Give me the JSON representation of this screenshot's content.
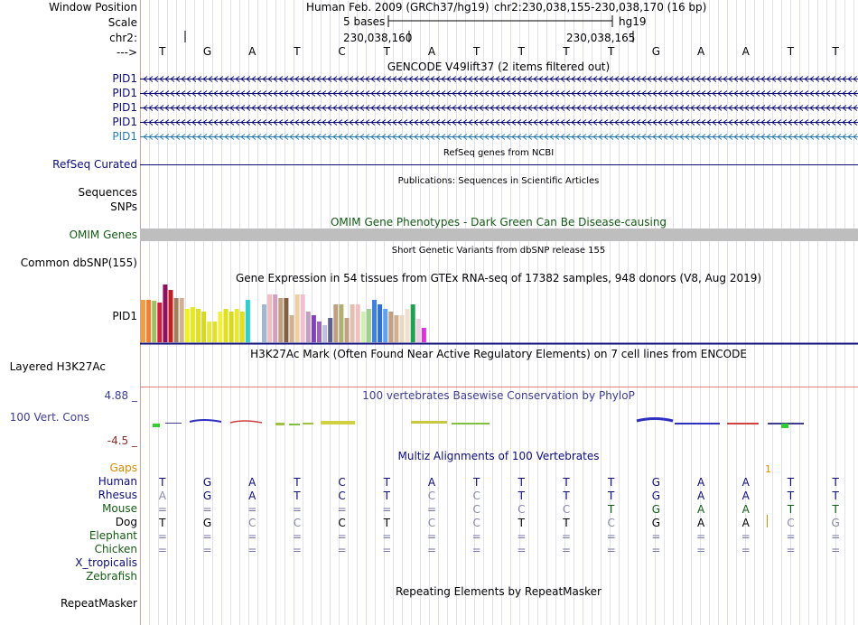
{
  "header": {
    "window_position_label": "Window Position",
    "scale_label": "Scale",
    "chr_label": "chr2:",
    "arrow_label": "--->",
    "assembly_text": "Human Feb. 2009 (GRCh37/hg19)",
    "position_text": "chr2:230,038,155-230,038,170 (16 bp)",
    "scale_text": "5 bases",
    "db_text": "hg19",
    "coord_1": "230,038,160",
    "coord_2": "230,038,165",
    "bases": [
      "T",
      "G",
      "A",
      "T",
      "C",
      "T",
      "A",
      "T",
      "T",
      "T",
      "T",
      "G",
      "A",
      "A",
      "T",
      "T"
    ]
  },
  "tracks": {
    "gencode": {
      "title": "GENCODE V49lift37 (2 items filtered out)",
      "genes": [
        {
          "name": "PID1",
          "color": "#0c0c78"
        },
        {
          "name": "PID1",
          "color": "#0c0c78"
        },
        {
          "name": "PID1",
          "color": "#0c0c78"
        },
        {
          "name": "PID1",
          "color": "#0c0c78"
        },
        {
          "name": "PID1",
          "color": "#2b7bad"
        }
      ]
    },
    "refseq": {
      "title": "RefSeq genes from NCBI",
      "label": "RefSeq Curated",
      "color": "#0c0c78"
    },
    "publications": {
      "title": "Publications: Sequences in Scientific Articles",
      "label1": "Sequences",
      "label2": "SNPs"
    },
    "omim": {
      "title": "OMIM Gene Phenotypes - Dark Green Can Be Disease-causing",
      "label": "OMIM Genes",
      "color": "#145a14"
    },
    "dbsnp": {
      "title": "Short Genetic Variants from dbSNP release 155",
      "label": "Common dbSNP(155)"
    },
    "gtex": {
      "title": "Gene Expression in 54 tissues from GTEx RNA-seq of 17382 samples, 948 donors (V8, Aug 2019)",
      "label": "PID1"
    },
    "h3k27ac": {
      "title": "H3K27Ac Mark (Often Found Near Active Regulatory Elements) on 7 cell lines from ENCODE",
      "label": "Layered H3K27Ac"
    },
    "conservation": {
      "title": "100 vertebrates Basewise Conservation by PhyloP",
      "label": "100 Vert. Cons",
      "max": "4.88 _",
      "min": "-4.5 _",
      "color": "#3d3d8f",
      "min_color": "#8b2a2a"
    },
    "multiz": {
      "title": "Multiz Alignments of 100 Vertebrates",
      "gaps_label": "Gaps",
      "gaps_mark": "1",
      "species": [
        {
          "name": "Human",
          "color": "#0c0c78",
          "row": [
            "T",
            "G",
            "A",
            "T",
            "C",
            "T",
            "A",
            "T",
            "T",
            "T",
            "T",
            "G",
            "A",
            "A",
            "T",
            "T"
          ]
        },
        {
          "name": "Rhesus",
          "color": "#0c0c78",
          "row": [
            "A",
            "G",
            "A",
            "T",
            "C",
            "T",
            "C",
            "C",
            "T",
            "T",
            "T",
            "G",
            "A",
            "A",
            "T",
            "T"
          ]
        },
        {
          "name": "Mouse",
          "color": "#145a14",
          "row": [
            "=",
            "=",
            "=",
            "=",
            "=",
            "=",
            "=",
            "C",
            "C",
            "C",
            "T",
            "G",
            "A",
            "A",
            "T",
            "T"
          ]
        },
        {
          "name": "Dog",
          "color": "#000000",
          "row": [
            "T",
            "G",
            "C",
            "C",
            "C",
            "T",
            "C",
            "C",
            "T",
            "T",
            "C",
            "G",
            "A",
            "A",
            "C",
            "G"
          ]
        },
        {
          "name": "Elephant",
          "color": "#145a14",
          "row": [
            "=",
            "=",
            "=",
            "=",
            "=",
            "=",
            "=",
            "=",
            "=",
            "=",
            "=",
            "=",
            "=",
            "=",
            "=",
            "="
          ]
        },
        {
          "name": "Chicken",
          "color": "#145a14",
          "row": [
            "=",
            "=",
            "=",
            "=",
            "=",
            "=",
            "=",
            "=",
            "=",
            "=",
            "=",
            "=",
            "=",
            "=",
            "=",
            "="
          ]
        },
        {
          "name": "X_tropicalis",
          "color": "#0c0c78",
          "row": []
        },
        {
          "name": "Zebrafish",
          "color": "#145a14",
          "row": []
        }
      ]
    },
    "repeatmasker": {
      "title": "Repeating Elements by RepeatMasker",
      "label": "RepeatMasker"
    }
  }
}
